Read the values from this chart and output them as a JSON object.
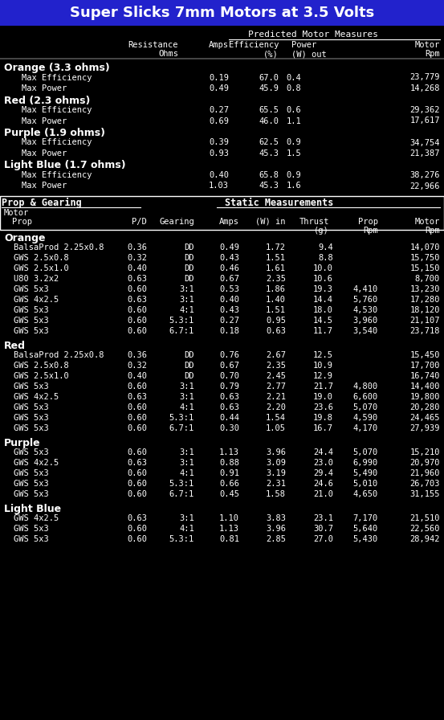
{
  "title": "Super Slicks 7mm Motors at 3.5 Volts",
  "title_bg": "#2222CC",
  "bg_color": "#000000",
  "section1_groups": [
    {
      "label": "Orange (3.3 ohms)",
      "rows": [
        [
          "Max Efficiency",
          "0.19",
          "67.0",
          "0.4",
          "23,779"
        ],
        [
          "Max Power",
          "0.49",
          "45.9",
          "0.8",
          "14,268"
        ]
      ]
    },
    {
      "label": "Red (2.3 ohms)",
      "rows": [
        [
          "Max Efficiency",
          "0.27",
          "65.5",
          "0.6",
          "29,362"
        ],
        [
          "Max Power",
          "0.69",
          "46.0",
          "1.1",
          "17,617"
        ]
      ]
    },
    {
      "label": "Purple (1.9 ohms)",
      "rows": [
        [
          "Max Efficiency",
          "0.39",
          "62.5",
          "0.9",
          "34,754"
        ],
        [
          "Max Power",
          "0.93",
          "45.3",
          "1.5",
          "21,387"
        ]
      ]
    },
    {
      "label": "Light Blue (1.7 ohms)",
      "rows": [
        [
          "Max Efficiency",
          "0.40",
          "65.8",
          "0.9",
          "38,276"
        ],
        [
          "Max Power",
          "1.03",
          "45.3",
          "1.6",
          "22,966"
        ]
      ]
    }
  ],
  "section2_groups": [
    {
      "label": "Orange",
      "rows": [
        [
          "BalsaProd 2.25x0.8",
          "0.36",
          "DD",
          "0.49",
          "1.72",
          "9.4",
          "",
          "14,070"
        ],
        [
          "GWS 2.5x0.8",
          "0.32",
          "DD",
          "0.43",
          "1.51",
          "8.8",
          "",
          "15,750"
        ],
        [
          "GWS 2.5x1.0",
          "0.40",
          "DD",
          "0.46",
          "1.61",
          "10.0",
          "",
          "15,150"
        ],
        [
          "U80 3.2x2",
          "0.63",
          "DD",
          "0.67",
          "2.35",
          "10.6",
          "",
          "8,700"
        ],
        [
          "GWS 5x3",
          "0.60",
          "3:1",
          "0.53",
          "1.86",
          "19.3",
          "4,410",
          "13,230"
        ],
        [
          "GWS 4x2.5",
          "0.63",
          "3:1",
          "0.40",
          "1.40",
          "14.4",
          "5,760",
          "17,280"
        ],
        [
          "GWS 5x3",
          "0.60",
          "4:1",
          "0.43",
          "1.51",
          "18.0",
          "4,530",
          "18,120"
        ],
        [
          "GWS 5x3",
          "0.60",
          "5.3:1",
          "0.27",
          "0.95",
          "14.5",
          "3,960",
          "21,107"
        ],
        [
          "GWS 5x3",
          "0.60",
          "6.7:1",
          "0.18",
          "0.63",
          "11.7",
          "3,540",
          "23,718"
        ]
      ]
    },
    {
      "label": "Red",
      "rows": [
        [
          "BalsaProd 2.25x0.8",
          "0.36",
          "DD",
          "0.76",
          "2.67",
          "12.5",
          "",
          "15,450"
        ],
        [
          "GWS 2.5x0.8",
          "0.32",
          "DD",
          "0.67",
          "2.35",
          "10.9",
          "",
          "17,700"
        ],
        [
          "GWS 2.5x1.0",
          "0.40",
          "DD",
          "0.70",
          "2.45",
          "12.9",
          "",
          "16,740"
        ],
        [
          "GWS 5x3",
          "0.60",
          "3:1",
          "0.79",
          "2.77",
          "21.7",
          "4,800",
          "14,400"
        ],
        [
          "GWS 4x2.5",
          "0.63",
          "3:1",
          "0.63",
          "2.21",
          "19.0",
          "6,600",
          "19,800"
        ],
        [
          "GWS 5x3",
          "0.60",
          "4:1",
          "0.63",
          "2.20",
          "23.6",
          "5,070",
          "20,280"
        ],
        [
          "GWS 5x3",
          "0.60",
          "5.3:1",
          "0.44",
          "1.54",
          "19.8",
          "4,590",
          "24,465"
        ],
        [
          "GWS 5x3",
          "0.60",
          "6.7:1",
          "0.30",
          "1.05",
          "16.7",
          "4,170",
          "27,939"
        ]
      ]
    },
    {
      "label": "Purple",
      "rows": [
        [
          "GWS 5x3",
          "0.60",
          "3:1",
          "1.13",
          "3.96",
          "24.4",
          "5,070",
          "15,210"
        ],
        [
          "GWS 4x2.5",
          "0.63",
          "3:1",
          "0.88",
          "3.09",
          "23.0",
          "6,990",
          "20,970"
        ],
        [
          "GWS 5x3",
          "0.60",
          "4:1",
          "0.91",
          "3.19",
          "29.4",
          "5,490",
          "21,960"
        ],
        [
          "GWS 5x3",
          "0.60",
          "5.3:1",
          "0.66",
          "2.31",
          "24.6",
          "5,010",
          "26,703"
        ],
        [
          "GWS 5x3",
          "0.60",
          "6.7:1",
          "0.45",
          "1.58",
          "21.0",
          "4,650",
          "31,155"
        ]
      ]
    },
    {
      "label": "Light Blue",
      "rows": [
        [
          "GWS 4x2.5",
          "0.63",
          "3:1",
          "1.10",
          "3.83",
          "23.1",
          "7,170",
          "21,510"
        ],
        [
          "GWS 5x3",
          "0.60",
          "4:1",
          "1.13",
          "3.96",
          "30.7",
          "5,640",
          "22,560"
        ],
        [
          "GWS 5x3",
          "0.60",
          "5.3:1",
          "0.81",
          "2.85",
          "27.0",
          "5,430",
          "28,942"
        ]
      ]
    }
  ]
}
